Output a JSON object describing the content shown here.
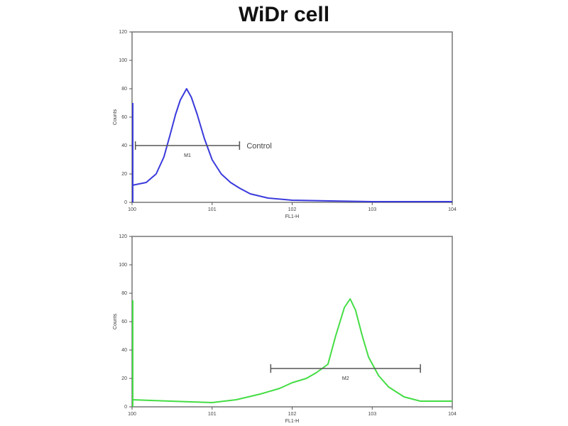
{
  "title": "WiDr cell",
  "chart_data": [
    {
      "type": "line",
      "xlabel": "FL1-H",
      "ylabel": "Counts",
      "xscale": "log",
      "xlim": [
        1,
        10000
      ],
      "ylim": [
        0,
        120
      ],
      "xticks": [
        "10^0",
        "10^1",
        "10^2",
        "10^3",
        "10^4"
      ],
      "yticks": [
        0,
        20,
        40,
        60,
        80,
        100,
        120
      ],
      "color": "#3a3adc",
      "series": [
        {
          "x": [
            1,
            1.5,
            2,
            2.5,
            3,
            3.5,
            4,
            4.8,
            5.5,
            6.5,
            8,
            10,
            13,
            17,
            22,
            30,
            50,
            100,
            300,
            1000,
            10000
          ],
          "y": [
            12,
            14,
            20,
            32,
            48,
            62,
            72,
            80,
            74,
            62,
            45,
            30,
            20,
            14,
            10,
            6,
            3,
            1.5,
            1,
            0.5,
            0.5
          ]
        }
      ],
      "gate": {
        "label": "M1",
        "x_range": [
          1.1,
          22
        ],
        "y": 40
      },
      "annotation": "Control"
    },
    {
      "type": "line",
      "xlabel": "FL1-H",
      "ylabel": "Counts",
      "xscale": "log",
      "xlim": [
        1,
        10000
      ],
      "ylim": [
        0,
        120
      ],
      "xticks": [
        "10^0",
        "10^1",
        "10^2",
        "10^3",
        "10^4"
      ],
      "yticks": [
        0,
        20,
        40,
        60,
        80,
        100,
        120
      ],
      "color": "#44dd44",
      "series": [
        {
          "x": [
            1,
            3,
            10,
            20,
            40,
            70,
            100,
            150,
            200,
            280,
            350,
            450,
            530,
            620,
            750,
            900,
            1200,
            1600,
            2500,
            4000,
            10000
          ],
          "y": [
            5,
            4,
            3,
            5,
            9,
            13,
            17,
            20,
            24,
            30,
            50,
            70,
            76,
            68,
            50,
            35,
            22,
            14,
            7,
            4,
            4
          ]
        }
      ],
      "gate": {
        "label": "M2",
        "x_range": [
          54,
          4000
        ],
        "y": 27
      }
    }
  ]
}
